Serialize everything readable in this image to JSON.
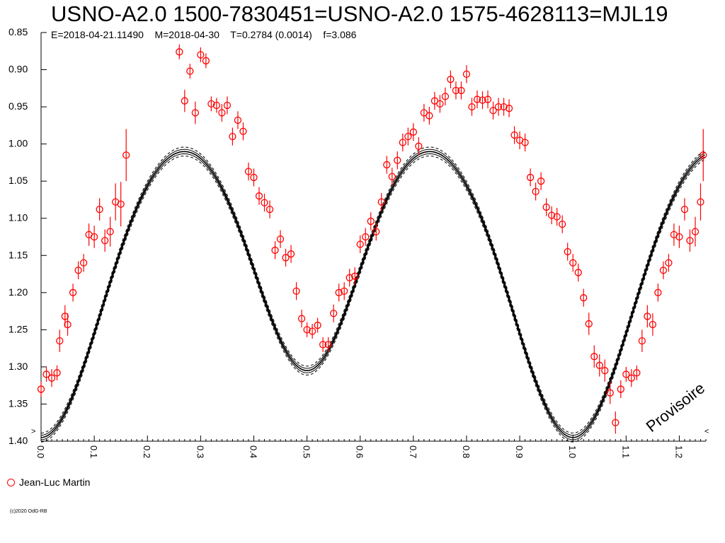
{
  "title": "USNO-A2.0 1500-7830451=USNO-A2.0 1575-4628113=MJL19",
  "subtitle": "E=2018-04-21.11490    M=2018-04-30    T=0.2784 (0.0014)    f=3.086",
  "legend": "Jean-Luc Martin",
  "watermark": "Provisoire",
  "copyright": "(c)2020 OdG-RB",
  "colors": {
    "points": "#ff0000",
    "model": "#000000"
  },
  "chart_data": {
    "type": "scatter",
    "title": "USNO-A2.0 1500-7830451=USNO-A2.0 1575-4628113=MJL19",
    "xlabel": "",
    "ylabel": "",
    "xlim": [
      0.0,
      1.25
    ],
    "ylim": [
      0.85,
      1.4
    ],
    "y_inverted": true,
    "xticks": [
      "0.0",
      "0.1",
      "0.2",
      "0.3",
      "0.4",
      "0.5",
      "0.6",
      "0.7",
      "0.8",
      "0.9",
      "1.0",
      "1.1",
      "1.2"
    ],
    "yticks": [
      "0.85",
      "0.90",
      "0.95",
      "1.00",
      "1.05",
      "1.10",
      "1.15",
      "1.20",
      "1.25",
      "1.30",
      "1.35",
      "1.40"
    ],
    "series": [
      {
        "name": "Jean-Luc Martin",
        "marker": "open-circle",
        "points": [
          [
            0.0,
            1.33,
            0.01
          ],
          [
            0.01,
            1.31,
            0.01
          ],
          [
            0.02,
            1.315,
            0.012
          ],
          [
            0.03,
            1.308,
            0.01
          ],
          [
            0.035,
            1.265,
            0.015
          ],
          [
            0.045,
            1.232,
            0.015
          ],
          [
            0.05,
            1.243,
            0.015
          ],
          [
            0.06,
            1.2,
            0.012
          ],
          [
            0.07,
            1.17,
            0.012
          ],
          [
            0.08,
            1.16,
            0.012
          ],
          [
            0.09,
            1.122,
            0.015
          ],
          [
            0.1,
            1.125,
            0.015
          ],
          [
            0.11,
            1.088,
            0.015
          ],
          [
            0.12,
            1.13,
            0.015
          ],
          [
            0.13,
            1.118,
            0.02
          ],
          [
            0.14,
            1.078,
            0.025
          ],
          [
            0.15,
            1.081,
            0.03
          ],
          [
            0.16,
            1.015,
            0.035
          ],
          [
            0.26,
            0.876,
            0.01
          ],
          [
            0.27,
            0.942,
            0.015
          ],
          [
            0.28,
            0.902,
            0.01
          ],
          [
            0.29,
            0.958,
            0.015
          ],
          [
            0.3,
            0.88,
            0.01
          ],
          [
            0.31,
            0.888,
            0.01
          ],
          [
            0.32,
            0.946,
            0.01
          ],
          [
            0.33,
            0.948,
            0.01
          ],
          [
            0.34,
            0.958,
            0.012
          ],
          [
            0.35,
            0.948,
            0.012
          ],
          [
            0.36,
            0.99,
            0.012
          ],
          [
            0.37,
            0.968,
            0.012
          ],
          [
            0.38,
            0.983,
            0.012
          ],
          [
            0.39,
            1.037,
            0.012
          ],
          [
            0.4,
            1.045,
            0.012
          ],
          [
            0.41,
            1.07,
            0.012
          ],
          [
            0.42,
            1.079,
            0.012
          ],
          [
            0.43,
            1.088,
            0.012
          ],
          [
            0.44,
            1.143,
            0.012
          ],
          [
            0.45,
            1.128,
            0.012
          ],
          [
            0.46,
            1.153,
            0.012
          ],
          [
            0.47,
            1.148,
            0.012
          ],
          [
            0.48,
            1.198,
            0.012
          ],
          [
            0.49,
            1.235,
            0.012
          ],
          [
            0.5,
            1.25,
            0.01
          ],
          [
            0.51,
            1.252,
            0.01
          ],
          [
            0.52,
            1.244,
            0.01
          ],
          [
            0.53,
            1.27,
            0.01
          ],
          [
            0.54,
            1.27,
            0.01
          ],
          [
            0.55,
            1.228,
            0.012
          ],
          [
            0.56,
            1.2,
            0.012
          ],
          [
            0.57,
            1.198,
            0.012
          ],
          [
            0.58,
            1.18,
            0.012
          ],
          [
            0.59,
            1.178,
            0.012
          ],
          [
            0.6,
            1.135,
            0.012
          ],
          [
            0.61,
            1.125,
            0.012
          ],
          [
            0.62,
            1.104,
            0.012
          ],
          [
            0.63,
            1.118,
            0.012
          ],
          [
            0.64,
            1.078,
            0.012
          ],
          [
            0.65,
            1.028,
            0.012
          ],
          [
            0.66,
            1.044,
            0.012
          ],
          [
            0.67,
            1.022,
            0.012
          ],
          [
            0.68,
            0.998,
            0.012
          ],
          [
            0.69,
            0.99,
            0.012
          ],
          [
            0.7,
            0.984,
            0.012
          ],
          [
            0.71,
            1.003,
            0.012
          ],
          [
            0.72,
            0.958,
            0.012
          ],
          [
            0.73,
            0.962,
            0.012
          ],
          [
            0.74,
            0.942,
            0.012
          ],
          [
            0.75,
            0.946,
            0.012
          ],
          [
            0.76,
            0.936,
            0.012
          ],
          [
            0.77,
            0.913,
            0.012
          ],
          [
            0.78,
            0.928,
            0.012
          ],
          [
            0.79,
            0.928,
            0.012
          ],
          [
            0.8,
            0.906,
            0.012
          ],
          [
            0.81,
            0.95,
            0.012
          ],
          [
            0.82,
            0.94,
            0.012
          ],
          [
            0.83,
            0.941,
            0.012
          ],
          [
            0.84,
            0.94,
            0.012
          ],
          [
            0.85,
            0.955,
            0.012
          ],
          [
            0.86,
            0.95,
            0.012
          ],
          [
            0.87,
            0.95,
            0.012
          ],
          [
            0.88,
            0.952,
            0.012
          ],
          [
            0.89,
            0.988,
            0.012
          ],
          [
            0.9,
            0.995,
            0.012
          ],
          [
            0.91,
            0.998,
            0.012
          ],
          [
            0.92,
            1.045,
            0.012
          ],
          [
            0.93,
            1.064,
            0.012
          ],
          [
            0.94,
            1.05,
            0.012
          ],
          [
            0.95,
            1.085,
            0.012
          ],
          [
            0.96,
            1.096,
            0.012
          ],
          [
            0.97,
            1.098,
            0.012
          ],
          [
            0.98,
            1.108,
            0.012
          ],
          [
            0.99,
            1.145,
            0.012
          ],
          [
            1.0,
            1.16,
            0.012
          ],
          [
            1.01,
            1.173,
            0.012
          ],
          [
            1.02,
            1.207,
            0.012
          ],
          [
            1.03,
            1.242,
            0.015
          ],
          [
            1.04,
            1.286,
            0.015
          ],
          [
            1.05,
            1.298,
            0.015
          ],
          [
            1.06,
            1.305,
            0.015
          ],
          [
            1.07,
            1.335,
            0.015
          ],
          [
            1.08,
            1.375,
            0.015
          ],
          [
            1.09,
            1.33,
            0.012
          ],
          [
            1.1,
            1.31,
            0.01
          ],
          [
            1.11,
            1.315,
            0.012
          ],
          [
            1.12,
            1.308,
            0.01
          ],
          [
            1.13,
            1.265,
            0.015
          ],
          [
            1.14,
            1.232,
            0.015
          ],
          [
            1.15,
            1.243,
            0.015
          ],
          [
            1.16,
            1.2,
            0.012
          ],
          [
            1.17,
            1.17,
            0.012
          ],
          [
            1.18,
            1.16,
            0.012
          ],
          [
            1.19,
            1.122,
            0.015
          ],
          [
            1.2,
            1.125,
            0.015
          ],
          [
            1.21,
            1.088,
            0.015
          ],
          [
            1.22,
            1.13,
            0.015
          ],
          [
            1.23,
            1.118,
            0.02
          ],
          [
            1.24,
            1.078,
            0.025
          ],
          [
            1.245,
            1.015,
            0.035
          ]
        ]
      },
      {
        "name": "model",
        "line": "solid",
        "params": {
          "max": 0.962,
          "primary_depth": 1.395,
          "secondary_depth": 1.305,
          "envelope": 0.006
        }
      }
    ]
  }
}
